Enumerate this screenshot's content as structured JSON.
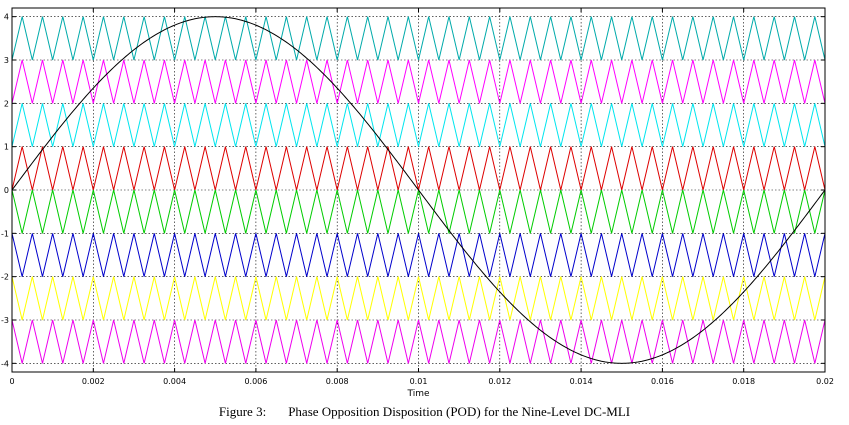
{
  "caption": {
    "number": "Figure 3:",
    "text": "Phase Opposition Disposition (POD) for the Nine-Level DC-MLI"
  },
  "chart_data": {
    "type": "line",
    "title": "",
    "xlabel": "Time",
    "ylabel": "",
    "xlim": [
      0,
      0.02
    ],
    "ylim": [
      -4.2,
      4.2
    ],
    "grid": true,
    "x_ticks": [
      0,
      0.002,
      0.004,
      0.006,
      0.008,
      0.01,
      0.012,
      0.014,
      0.016,
      0.018,
      0.02
    ],
    "x_tick_labels": [
      "0",
      "0.002",
      "0.004",
      "0.006",
      "0.008",
      "0.01",
      "0.012",
      "0.014",
      "0.016",
      "0.018",
      "0.02"
    ],
    "y_ticks": [
      -4,
      -3,
      -2,
      -1,
      0,
      1,
      2,
      3,
      4
    ],
    "y_tick_labels": [
      "-4",
      "-3",
      "-2",
      "-1",
      "0",
      "1",
      "2",
      "3",
      "4"
    ],
    "reference": {
      "waveform": "sine",
      "amplitude": 4,
      "frequency_hz": 50,
      "color": "#000000"
    },
    "carriers": {
      "waveform": "triangle",
      "frequency_hz": 2000,
      "bands": [
        {
          "min": 3,
          "max": 4,
          "start": "low",
          "color": "#00aaaa"
        },
        {
          "min": 2,
          "max": 3,
          "start": "low",
          "color": "#ff00ff"
        },
        {
          "min": 1,
          "max": 2,
          "start": "low",
          "color": "#00e5ee"
        },
        {
          "min": 0,
          "max": 1,
          "start": "low",
          "color": "#dd0000"
        },
        {
          "min": -1,
          "max": 0,
          "start": "high",
          "color": "#00cc00"
        },
        {
          "min": -2,
          "max": -1,
          "start": "high",
          "color": "#0000cc"
        },
        {
          "min": -3,
          "max": -2,
          "start": "high",
          "color": "#ffff00"
        },
        {
          "min": -4,
          "max": -3,
          "start": "high",
          "color": "#ee00ee"
        }
      ]
    }
  }
}
